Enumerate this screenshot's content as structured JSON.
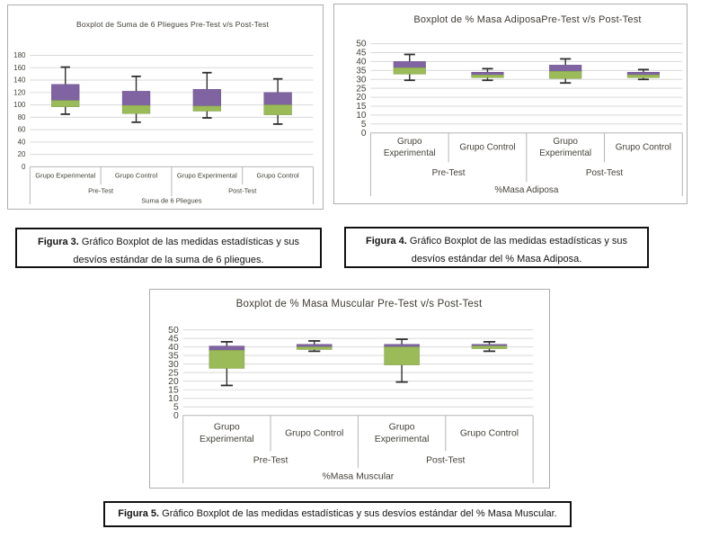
{
  "colors": {
    "box_lower_green": "#9BBB59",
    "box_upper_purple": "#8064A2",
    "whisker": "#2e2e2e",
    "gridline": "#d9d9d9",
    "axis_line": "#b5b5b5",
    "chart_text": "#45423a"
  },
  "chart_data": [
    {
      "type": "boxplot",
      "title": "Boxplot de Suma de 6 Pliegues  Pre-Test v/s  Post-Test",
      "x_axis_title": "Suma de 6 Pliegues",
      "ylim": [
        0,
        180
      ],
      "y_ticks": [
        0,
        20,
        40,
        60,
        80,
        100,
        120,
        140,
        160,
        180
      ],
      "grid": true,
      "legend": "none",
      "group_labels": [
        "Pre-Test",
        "Post-Test"
      ],
      "categories": [
        [
          "Grupo Experimental"
        ],
        [
          "Grupo Control"
        ],
        [
          "Grupo Experimental"
        ],
        [
          "Grupo Control"
        ]
      ],
      "boxes": [
        {
          "group": "Pre-Test",
          "category": "Grupo Experimental",
          "whisker_low": 85,
          "q1": 97,
          "median": 107,
          "q3": 133,
          "whisker_high": 161
        },
        {
          "group": "Pre-Test",
          "category": "Grupo Control",
          "whisker_low": 72,
          "q1": 86,
          "median": 99,
          "q3": 122,
          "whisker_high": 146
        },
        {
          "group": "Post-Test",
          "category": "Grupo Experimental",
          "whisker_low": 79,
          "q1": 90,
          "median": 98,
          "q3": 125,
          "whisker_high": 152
        },
        {
          "group": "Post-Test",
          "category": "Grupo Control",
          "whisker_low": 69,
          "q1": 84,
          "median": 100,
          "q3": 120,
          "whisker_high": 142
        }
      ]
    },
    {
      "type": "boxplot",
      "title": "Boxplot de  % Masa AdiposaPre-Test v/s  Post-Test",
      "x_axis_title": "%Masa Adiposa",
      "ylim": [
        0,
        50
      ],
      "y_ticks": [
        0,
        5,
        10,
        15,
        20,
        25,
        30,
        35,
        40,
        45,
        50
      ],
      "grid": true,
      "legend": "none",
      "group_labels": [
        "Pre-Test",
        "Post-Test"
      ],
      "categories": [
        [
          "Grupo",
          "Experimental"
        ],
        [
          "Grupo Control"
        ],
        [
          "Grupo",
          "Experimental"
        ],
        [
          "Grupo Control"
        ]
      ],
      "boxes": [
        {
          "group": "Pre-Test",
          "category": "Grupo Experimental",
          "whisker_low": 29.5,
          "q1": 33,
          "median": 36.5,
          "q3": 40,
          "whisker_high": 44
        },
        {
          "group": "Pre-Test",
          "category": "Grupo Control",
          "whisker_low": 29.5,
          "q1": 31,
          "median": 32.5,
          "q3": 34,
          "whisker_high": 36
        },
        {
          "group": "Post-Test",
          "category": "Grupo Experimental",
          "whisker_low": 28,
          "q1": 30.5,
          "median": 34.5,
          "q3": 38,
          "whisker_high": 41.5
        },
        {
          "group": "Post-Test",
          "category": "Grupo Control",
          "whisker_low": 30,
          "q1": 31,
          "median": 32.5,
          "q3": 34,
          "whisker_high": 35.5
        }
      ]
    },
    {
      "type": "boxplot",
      "title": "Boxplot de  % Masa Muscular Pre-Test v/s  Post-Test",
      "x_axis_title": "%Masa Muscular",
      "ylim": [
        0,
        50
      ],
      "y_ticks": [
        0,
        5,
        10,
        15,
        20,
        25,
        30,
        35,
        40,
        45,
        50
      ],
      "grid": true,
      "legend": "none",
      "group_labels": [
        "Pre-Test",
        "Post-Test"
      ],
      "categories": [
        [
          "Grupo",
          "Experimental"
        ],
        [
          "Grupo Control"
        ],
        [
          "Grupo",
          "Experimental"
        ],
        [
          "Grupo Control"
        ]
      ],
      "boxes": [
        {
          "group": "Pre-Test",
          "category": "Grupo Experimental",
          "whisker_low": 17.5,
          "q1": 27.5,
          "median": 38,
          "q3": 40.5,
          "whisker_high": 43
        },
        {
          "group": "Pre-Test",
          "category": "Grupo Control",
          "whisker_low": 37.5,
          "q1": 38.5,
          "median": 40,
          "q3": 41.5,
          "whisker_high": 43.5
        },
        {
          "group": "Post-Test",
          "category": "Grupo Experimental",
          "whisker_low": 19.5,
          "q1": 29.5,
          "median": 40,
          "q3": 41.5,
          "whisker_high": 44.5
        },
        {
          "group": "Post-Test",
          "category": "Grupo Control",
          "whisker_low": 37.5,
          "q1": 39,
          "median": 40.5,
          "q3": 41.5,
          "whisker_high": 43
        }
      ]
    }
  ],
  "captions": [
    {
      "label": "Figura 3.",
      "text": "Gráfico Boxplot de las medidas estadísticas y sus desvíos estándar de la suma de 6 pliegues."
    },
    {
      "label": "Figura 4.",
      "text": "Gráfico Boxplot de las medidas estadísticas y sus desvíos estándar del % Masa Adiposa."
    },
    {
      "label": "Figura 5.",
      "text": "Gráfico Boxplot de las medidas estadísticas y sus desvíos estándar del % Masa Muscular."
    }
  ]
}
